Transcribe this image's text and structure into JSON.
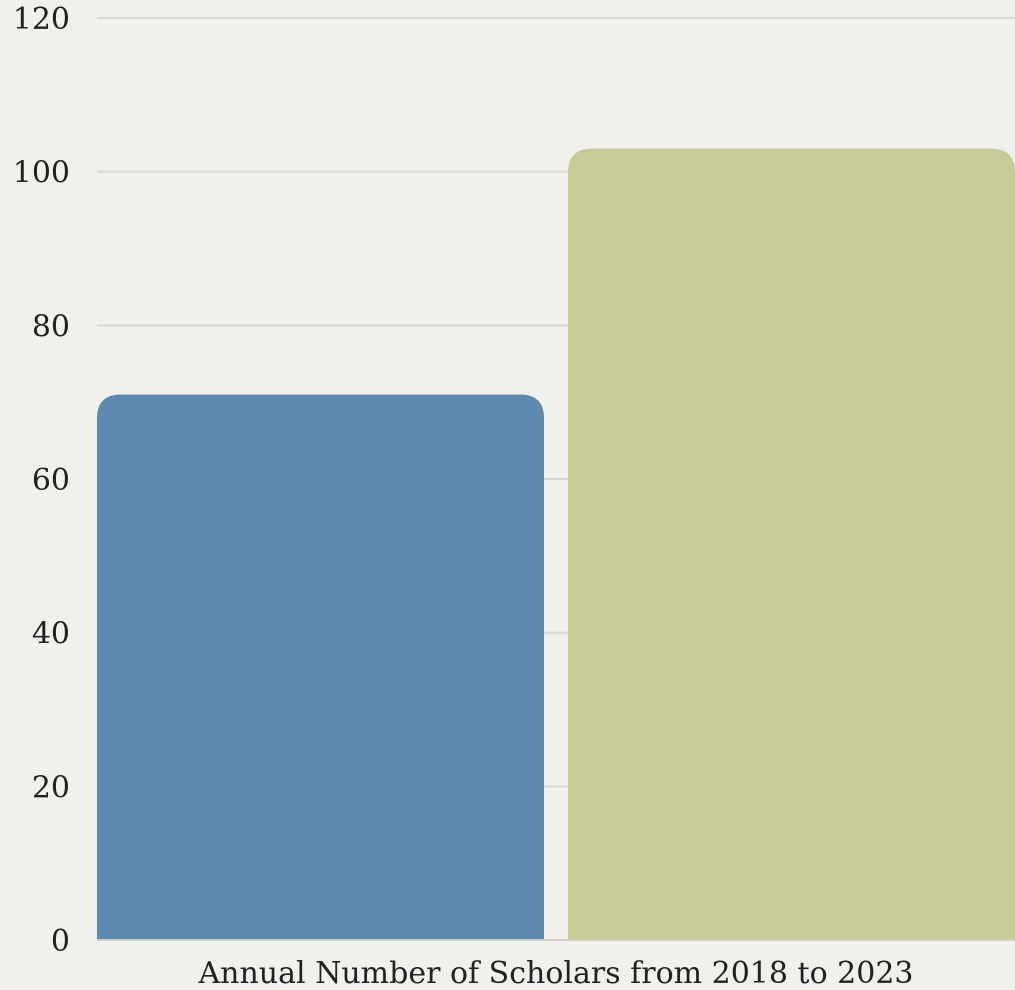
{
  "chart_data": {
    "type": "bar",
    "title": "",
    "xlabel": "Annual Number of Scholars from 2018 to 2023",
    "ylabel": "",
    "categories": [
      "",
      ""
    ],
    "values": [
      71,
      103
    ],
    "colors": [
      "#5b8aae",
      "#c7cc96"
    ],
    "ylim": [
      0,
      120
    ],
    "yticks": [
      "0",
      "20",
      "40",
      "60",
      "80",
      "100",
      "120"
    ],
    "grid": true,
    "legend": "none"
  }
}
